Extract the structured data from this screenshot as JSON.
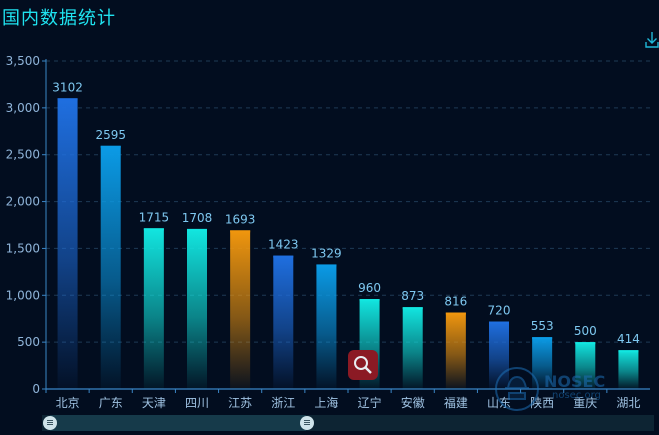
{
  "title": "国内数据统计",
  "download_icon": "download-icon",
  "search_icon": "magnifier-icon",
  "watermark": {
    "name": "NOSEC",
    "site": "nosec.org",
    "icon": "nosec-hat-logo"
  },
  "colors": {
    "background": "#020d1f",
    "title": "#1fe3f0",
    "blue": "#1f6fe0",
    "sky": "#0b9be6",
    "cyan": "#12e6e0",
    "orange": "#f0960e",
    "axis": "#3a86c6",
    "grid": "#1e3a55"
  },
  "chart_data": {
    "type": "bar",
    "categories": [
      "北京",
      "广东",
      "天津",
      "四川",
      "江苏",
      "浙江",
      "上海",
      "辽宁",
      "安徽",
      "福建",
      "山东",
      "陕西",
      "重庆",
      "湖北"
    ],
    "values": [
      3102,
      2595,
      1715,
      1708,
      1693,
      1423,
      1329,
      960,
      873,
      816,
      720,
      553,
      500,
      414
    ],
    "bar_colors": [
      "blue",
      "sky",
      "cyan",
      "cyan",
      "orange",
      "blue",
      "sky",
      "cyan",
      "cyan",
      "orange",
      "blue",
      "sky",
      "cyan",
      "cyan"
    ],
    "ylim": [
      0,
      3500
    ],
    "yticks": [
      "0",
      "500",
      "1,000",
      "1,500",
      "2,000",
      "2,500",
      "3,000",
      "3,500"
    ],
    "grid": "dashed horizontal",
    "data_labels": [
      "3102",
      "2595",
      "1715",
      "1708",
      "1693",
      "1423",
      "1329",
      "960",
      "873",
      "816",
      "720",
      "553",
      "500",
      "414"
    ]
  }
}
